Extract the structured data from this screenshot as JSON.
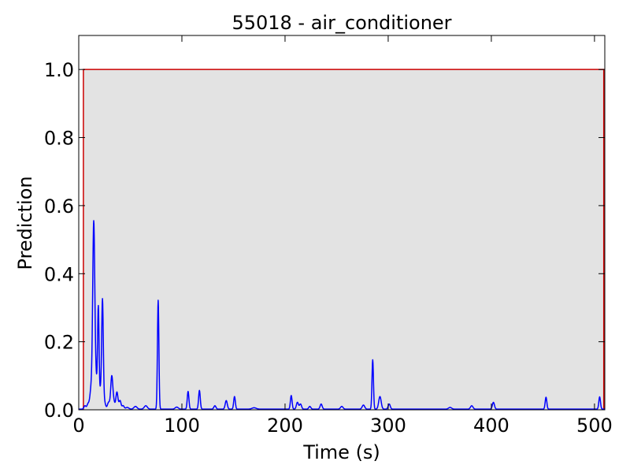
{
  "chart_data": {
    "type": "line",
    "title": "55018 - air_conditioner",
    "xlabel": "Time (s)",
    "ylabel": "Prediction",
    "xlim": [
      0,
      510
    ],
    "ylim": [
      0,
      1.1
    ],
    "xticks": [
      0,
      100,
      200,
      300,
      400,
      500
    ],
    "xtick_labels": [
      "0",
      "100",
      "200",
      "300",
      "400",
      "500"
    ],
    "yticks": [
      0,
      0.2,
      0.4,
      0.6,
      0.8,
      1.0
    ],
    "ytick_labels": [
      "0.0",
      "0.2",
      "0.4",
      "0.6",
      "0.8",
      "1.0"
    ],
    "grid": false,
    "legend": "none",
    "ground_truth": {
      "start": 4.5,
      "end": 509,
      "value": 1.0,
      "line_color": "#cc0000",
      "fill_color": "#e3e3e3"
    },
    "prediction": {
      "color": "#0000ff",
      "baseline": 0.002,
      "peaks": [
        [
          6,
          0.01,
          1.0
        ],
        [
          9,
          0.015,
          1.0
        ],
        [
          12,
          0.06,
          1.2
        ],
        [
          14.5,
          0.51,
          1.0
        ],
        [
          16.5,
          0.09,
          1.5
        ],
        [
          19,
          0.28,
          0.7
        ],
        [
          21,
          0.05,
          0.8
        ],
        [
          23,
          0.32,
          0.8
        ],
        [
          25,
          0.02,
          1.0
        ],
        [
          29,
          0.02,
          1.2
        ],
        [
          32,
          0.095,
          1.0
        ],
        [
          34,
          0.02,
          1.0
        ],
        [
          37,
          0.05,
          1.0
        ],
        [
          40,
          0.025,
          1.0
        ],
        [
          43,
          0.01,
          1.0
        ],
        [
          47,
          0.005,
          1.5
        ],
        [
          55,
          0.008,
          1.5
        ],
        [
          65,
          0.01,
          1.5
        ],
        [
          77,
          0.32,
          0.7
        ],
        [
          95,
          0.006,
          1.5
        ],
        [
          106,
          0.052,
          0.8
        ],
        [
          117,
          0.055,
          0.8
        ],
        [
          132,
          0.01,
          1.0
        ],
        [
          143,
          0.025,
          1.0
        ],
        [
          151,
          0.037,
          0.8
        ],
        [
          170,
          0.004,
          2.0
        ],
        [
          206,
          0.04,
          0.8
        ],
        [
          212,
          0.02,
          1.0
        ],
        [
          215,
          0.015,
          1.0
        ],
        [
          224,
          0.008,
          1.0
        ],
        [
          235,
          0.015,
          1.0
        ],
        [
          255,
          0.008,
          1.2
        ],
        [
          276,
          0.012,
          1.2
        ],
        [
          285,
          0.145,
          0.7
        ],
        [
          292,
          0.037,
          1.2
        ],
        [
          301,
          0.015,
          1.0
        ],
        [
          360,
          0.005,
          1.5
        ],
        [
          381,
          0.01,
          1.2
        ],
        [
          402,
          0.02,
          1.0
        ],
        [
          453,
          0.035,
          0.8
        ],
        [
          505,
          0.036,
          0.8
        ]
      ]
    }
  }
}
